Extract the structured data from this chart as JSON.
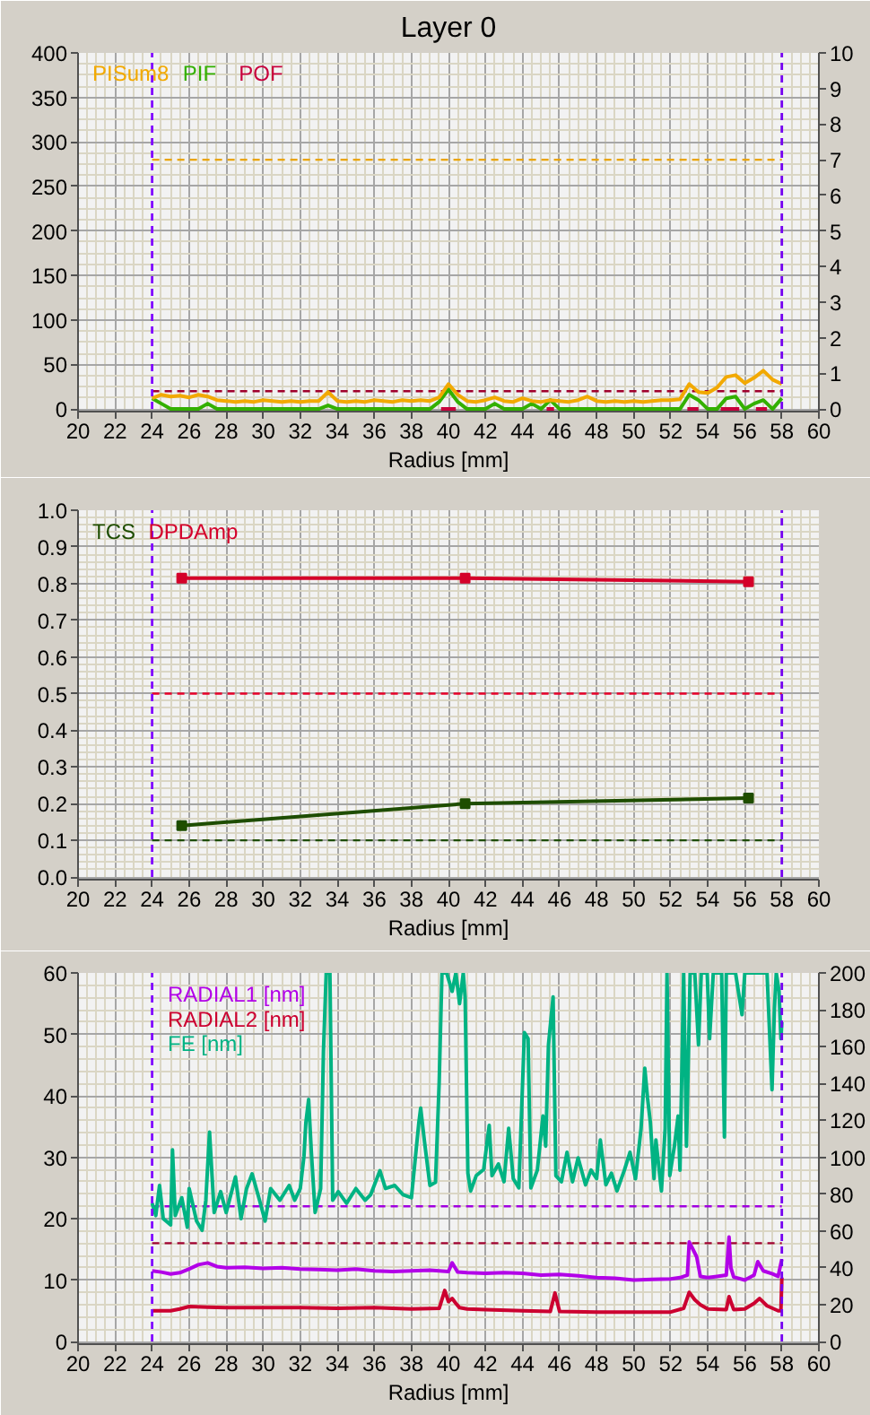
{
  "chart_data": [
    {
      "type": "line",
      "title": "Layer 0",
      "xlabel": "Radius [mm]",
      "xlim": [
        20,
        60
      ],
      "xticks": [
        20,
        22,
        24,
        26,
        28,
        30,
        32,
        34,
        36,
        38,
        40,
        42,
        44,
        46,
        48,
        50,
        52,
        54,
        56,
        58,
        60
      ],
      "ylim": [
        0,
        400
      ],
      "yticks": [
        0,
        50,
        100,
        150,
        200,
        250,
        300,
        350,
        400
      ],
      "y2lim": [
        0,
        10
      ],
      "y2ticks": [
        0,
        1,
        2,
        3,
        4,
        5,
        6,
        7,
        8,
        9,
        10
      ],
      "grid": true,
      "legend": "top left",
      "x": [
        24,
        24.5,
        25,
        25.5,
        26,
        26.5,
        27,
        27.5,
        28,
        28.5,
        29,
        29.5,
        30,
        30.5,
        31,
        31.5,
        32,
        32.5,
        33,
        33.5,
        34,
        34.5,
        35,
        35.5,
        36,
        36.5,
        37,
        37.5,
        38,
        38.5,
        39,
        39.5,
        40,
        40.5,
        41,
        41.5,
        42,
        42.5,
        43,
        43.5,
        44,
        44.5,
        45,
        45.5,
        46,
        46.5,
        47,
        47.5,
        48,
        48.5,
        49,
        49.5,
        50,
        50.5,
        51,
        51.5,
        52,
        52.5,
        53,
        53.5,
        54,
        54.5,
        55,
        55.5,
        56,
        56.5,
        57,
        57.5,
        58
      ],
      "series": [
        {
          "name": "PISum8",
          "color": "#f2a900",
          "values": [
            12,
            16,
            14,
            15,
            13,
            16,
            14,
            10,
            9,
            8,
            9,
            8,
            10,
            9,
            8,
            9,
            8,
            9,
            9,
            19,
            9,
            8,
            9,
            8,
            10,
            9,
            8,
            10,
            9,
            10,
            9,
            13,
            28,
            16,
            9,
            8,
            10,
            13,
            9,
            8,
            12,
            9,
            8,
            10,
            9,
            8,
            10,
            14,
            9,
            8,
            9,
            8,
            9,
            8,
            9,
            10,
            10,
            11,
            28,
            19,
            18,
            24,
            36,
            38,
            29,
            35,
            43,
            33,
            28
          ]
        },
        {
          "name": "PIF",
          "color": "#33b000",
          "axis": "y2",
          "values": [
            0.3,
            0.15,
            0,
            0,
            0,
            0,
            0.15,
            0,
            0,
            0,
            0,
            0,
            0,
            0,
            0,
            0,
            0,
            0,
            0,
            0.1,
            0,
            0,
            0,
            0,
            0,
            0,
            0,
            0,
            0,
            0,
            0,
            0.2,
            0.55,
            0.2,
            0,
            0,
            0,
            0.15,
            0,
            0,
            0,
            0.15,
            0,
            0.25,
            0,
            0,
            0,
            0,
            0,
            0,
            0,
            0,
            0,
            0,
            0,
            0,
            0,
            0,
            0.4,
            0.25,
            0,
            0,
            0.3,
            0.35,
            0,
            0.15,
            0.25,
            0,
            0.3
          ]
        },
        {
          "name": "POF",
          "color": "#c8003c",
          "axis": "y2",
          "x": [
            39.6,
            40.4,
            40.45,
            45.3,
            45.7,
            45.75,
            52.9,
            53.5,
            53.55,
            54.7,
            55.7,
            55.75,
            56.6,
            57.2
          ],
          "values": [
            0,
            0,
            null,
            0,
            0,
            null,
            0,
            0,
            null,
            0,
            0,
            null,
            0,
            0
          ]
        }
      ],
      "ref_lines": [
        {
          "axis": "x",
          "value": 24,
          "color": "#8000ff",
          "line_style": "dashed"
        },
        {
          "axis": "x",
          "value": 58,
          "color": "#7400f0",
          "line_style": "dashed"
        },
        {
          "axis": "y",
          "value": 280,
          "color": "#eaa400",
          "line_style": "dashed"
        },
        {
          "axis": "y2",
          "value": 0.5,
          "color": "#a0002c",
          "line_style": "dashed"
        }
      ]
    },
    {
      "type": "line",
      "xlabel": "Radius [mm]",
      "xlim": [
        20,
        60
      ],
      "xticks": [
        20,
        22,
        24,
        26,
        28,
        30,
        32,
        34,
        36,
        38,
        40,
        42,
        44,
        46,
        48,
        50,
        52,
        54,
        56,
        58,
        60
      ],
      "ylim": [
        0,
        1
      ],
      "yticks": [
        {
          "value": 0,
          "label": "0.0"
        },
        0.1,
        0.2,
        0.3,
        0.4,
        0.5,
        0.6,
        0.7,
        0.8,
        0.9,
        {
          "value": 1,
          "label": "1.0"
        }
      ],
      "grid": true,
      "legend": "top left",
      "marker": "square",
      "x": [
        25.6,
        40.9,
        56.2
      ],
      "series": [
        {
          "name": "TCS",
          "color": "#1e4d00",
          "values": [
            0.14,
            0.2,
            0.215
          ]
        },
        {
          "name": "DPDAmp",
          "color": "#d4002a",
          "values": [
            0.815,
            0.815,
            0.805
          ]
        }
      ],
      "ref_lines": [
        {
          "axis": "x",
          "value": 24,
          "color": "#8000ff",
          "line_style": "dashed"
        },
        {
          "axis": "x",
          "value": 58,
          "color": "#7400f0",
          "line_style": "dashed"
        },
        {
          "axis": "y",
          "value": 0.5,
          "color": "#e8002a",
          "line_style": "dashed"
        },
        {
          "axis": "y",
          "value": 0.1,
          "color": "#1e4d00",
          "line_style": "dashed"
        }
      ]
    },
    {
      "type": "line",
      "xlabel": "Radius [mm]",
      "xlim": [
        20,
        60
      ],
      "xticks": [
        20,
        22,
        24,
        26,
        28,
        30,
        32,
        34,
        36,
        38,
        40,
        42,
        44,
        46,
        48,
        50,
        52,
        54,
        56,
        58,
        60
      ],
      "ylim": [
        0,
        60
      ],
      "yticks": [
        0,
        10,
        20,
        30,
        40,
        50,
        60
      ],
      "y2lim": [
        0,
        200
      ],
      "y2ticks": [
        0,
        20,
        40,
        60,
        80,
        100,
        120,
        140,
        160,
        180,
        200
      ],
      "grid": true,
      "legend": "top left",
      "series": [
        {
          "name": "RADIAL1 [nm]",
          "color": "#b200e8",
          "x": [
            24,
            24.5,
            25,
            25.5,
            26,
            26.5,
            27,
            27.5,
            28,
            29,
            30,
            31,
            32,
            33,
            34,
            35,
            36,
            37,
            38,
            39,
            40,
            40.2,
            40.5,
            41,
            42,
            43,
            44,
            45,
            46,
            47,
            48,
            49,
            50,
            51,
            52,
            52.5,
            52.9,
            53.0,
            53.2,
            53.4,
            53.6,
            54,
            54.5,
            55,
            55.15,
            55.25,
            55.4,
            56,
            56.5,
            56.7,
            57,
            57.5,
            57.8,
            58
          ],
          "values": [
            11.5,
            11.3,
            11.0,
            11.2,
            11.8,
            12.5,
            12.8,
            12.2,
            12.0,
            12.1,
            11.9,
            12.0,
            11.8,
            11.7,
            11.6,
            11.8,
            11.5,
            11.4,
            11.5,
            11.6,
            11.4,
            12.8,
            11.3,
            11.2,
            11.1,
            11.2,
            11.1,
            10.8,
            10.9,
            10.7,
            10.4,
            10.3,
            10.0,
            10.1,
            10.2,
            10.4,
            10.8,
            16.2,
            15.0,
            13.8,
            10.6,
            10.4,
            10.6,
            10.8,
            17.0,
            12.0,
            10.5,
            10.0,
            10.8,
            13.0,
            11.5,
            11.0,
            10.6,
            13.4
          ]
        },
        {
          "name": "RADIAL2 [nm]",
          "color": "#cc0030",
          "x": [
            24,
            25,
            25.5,
            26,
            27,
            28,
            30,
            32,
            34,
            36,
            38,
            39.5,
            39.8,
            40.0,
            40.2,
            40.4,
            40.6,
            41,
            42,
            44,
            45.5,
            45.75,
            46,
            48,
            50,
            52,
            52.7,
            53.0,
            53.3,
            53.6,
            54,
            55,
            55.15,
            55.4,
            56,
            56.5,
            56.8,
            57.2,
            57.8,
            57.95,
            58
          ],
          "values": [
            5.0,
            5.0,
            5.3,
            5.7,
            5.6,
            5.5,
            5.5,
            5.5,
            5.4,
            5.5,
            5.3,
            5.4,
            8.3,
            6.5,
            7.0,
            6.2,
            5.5,
            5.3,
            5.2,
            5.0,
            4.9,
            7.9,
            4.9,
            4.8,
            4.8,
            4.8,
            5.4,
            8.0,
            6.8,
            6.0,
            5.3,
            5.2,
            7.3,
            5.2,
            5.3,
            6.2,
            7.0,
            5.8,
            5.0,
            5.0,
            10.4
          ]
        },
        {
          "name": "FE [nm]",
          "color": "#00b383",
          "x": [
            24.0,
            24.2,
            24.4,
            24.6,
            25.0,
            25.1,
            25.25,
            25.6,
            25.9,
            26.0,
            26.4,
            26.7,
            26.9,
            27.1,
            27.35,
            27.7,
            28.0,
            28.5,
            28.8,
            29.1,
            29.4,
            29.8,
            30.1,
            30.4,
            30.9,
            31.4,
            31.7,
            32.0,
            32.2,
            32.3,
            32.45,
            32.6,
            32.8,
            33.1,
            33.25,
            33.4,
            33.6,
            33.75,
            34.05,
            34.5,
            35.0,
            35.5,
            35.8,
            36.3,
            36.6,
            37.1,
            37.55,
            38.0,
            38.4,
            38.5,
            38.7,
            39.0,
            39.3,
            39.5,
            39.65,
            39.9,
            40.2,
            40.4,
            40.6,
            40.8,
            40.9,
            41.05,
            41.2,
            41.5,
            41.9,
            42.2,
            42.35,
            42.7,
            43.0,
            43.25,
            43.5,
            43.8,
            44.1,
            44.3,
            44.45,
            44.8,
            45.1,
            45.25,
            45.4,
            45.65,
            45.8,
            46.1,
            46.4,
            46.7,
            47.0,
            47.4,
            47.7,
            48.0,
            48.2,
            48.5,
            48.8,
            49.1,
            49.5,
            49.8,
            50.1,
            50.4,
            50.6,
            50.75,
            50.9,
            51.1,
            51.2,
            51.5,
            51.7,
            51.8,
            51.95,
            52.2,
            52.4,
            52.5,
            52.7,
            52.85,
            53.05,
            53.3,
            53.5,
            53.65,
            53.97,
            54.1,
            54.3,
            54.75,
            54.9,
            55.0,
            55.5,
            55.85,
            56.0,
            57.2,
            57.47,
            57.6,
            57.7,
            57.85,
            57.95,
            58.0
          ],
          "values": [
            22.5,
            20.5,
            25.4,
            20.0,
            19.0,
            31.2,
            20.5,
            23.4,
            18.6,
            24.9,
            19.6,
            18.1,
            23.0,
            34.1,
            21.0,
            24.4,
            21.0,
            26.8,
            20.0,
            24.9,
            27.3,
            23.0,
            19.6,
            24.9,
            23.0,
            25.4,
            23.0,
            24.9,
            30.2,
            35.6,
            39.4,
            30.7,
            21.0,
            24.9,
            47.2,
            60,
            60,
            23.0,
            24.4,
            22.5,
            24.9,
            23.0,
            23.9,
            27.8,
            24.9,
            25.4,
            23.9,
            23.4,
            35.6,
            38.0,
            32.7,
            25.4,
            25.9,
            42.3,
            60,
            60,
            57,
            60,
            55,
            60,
            56,
            27.4,
            24.5,
            27.0,
            28.0,
            35.2,
            27.0,
            28.9,
            26.0,
            34.7,
            26.5,
            25.0,
            50.3,
            49.3,
            25.0,
            27.9,
            36.7,
            31.8,
            48.3,
            56.1,
            27.0,
            26.0,
            30.8,
            26.0,
            29.9,
            25.5,
            27.9,
            26.5,
            32.8,
            25.5,
            27.4,
            24.5,
            27.9,
            30.8,
            26.5,
            34.7,
            44.5,
            39.6,
            35.7,
            26.5,
            32.8,
            24.5,
            34.7,
            60,
            27.0,
            31.8,
            36.7,
            27.9,
            60,
            31.8,
            60,
            60,
            48.3,
            60,
            60,
            49.3,
            60,
            60,
            33.3,
            60,
            60,
            53.2,
            60,
            60,
            41.0,
            54.2,
            60,
            57.0,
            49.3,
            52.0
          ]
        }
      ],
      "ref_lines": [
        {
          "axis": "x",
          "value": 24,
          "color": "#8000ff",
          "line_style": "dashed"
        },
        {
          "axis": "x",
          "value": 58,
          "color": "#7400f0",
          "line_style": "dashed"
        },
        {
          "axis": "y",
          "value": 22,
          "color": "#a000e0",
          "line_style": "dashed"
        },
        {
          "axis": "y",
          "value": 16,
          "color": "#a00030",
          "line_style": "dashed"
        }
      ]
    }
  ]
}
